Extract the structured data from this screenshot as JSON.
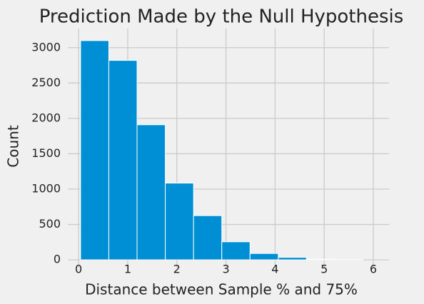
{
  "chart_data": {
    "type": "histogram",
    "title": "Prediction Made by the Null Hypothesis",
    "x_label": "Distance between Sample % and 75%",
    "y_label": "Count",
    "bins": [
      0.04,
      0.615,
      1.19,
      1.765,
      2.34,
      2.915,
      3.49,
      4.065,
      4.64,
      5.215,
      5.79
    ],
    "values": [
      3100,
      2820,
      1910,
      1085,
      625,
      255,
      90,
      35,
      8,
      2
    ],
    "color": "#008fd5",
    "edge_color": "#ffffff",
    "xlim": [
      -0.22,
      6.32
    ],
    "ylim": [
      -110,
      3270
    ],
    "xticks": [
      0,
      1,
      2,
      3,
      4,
      5,
      6
    ],
    "yticks": [
      0,
      500,
      1000,
      1500,
      2000,
      2500,
      3000
    ],
    "grid": true
  }
}
